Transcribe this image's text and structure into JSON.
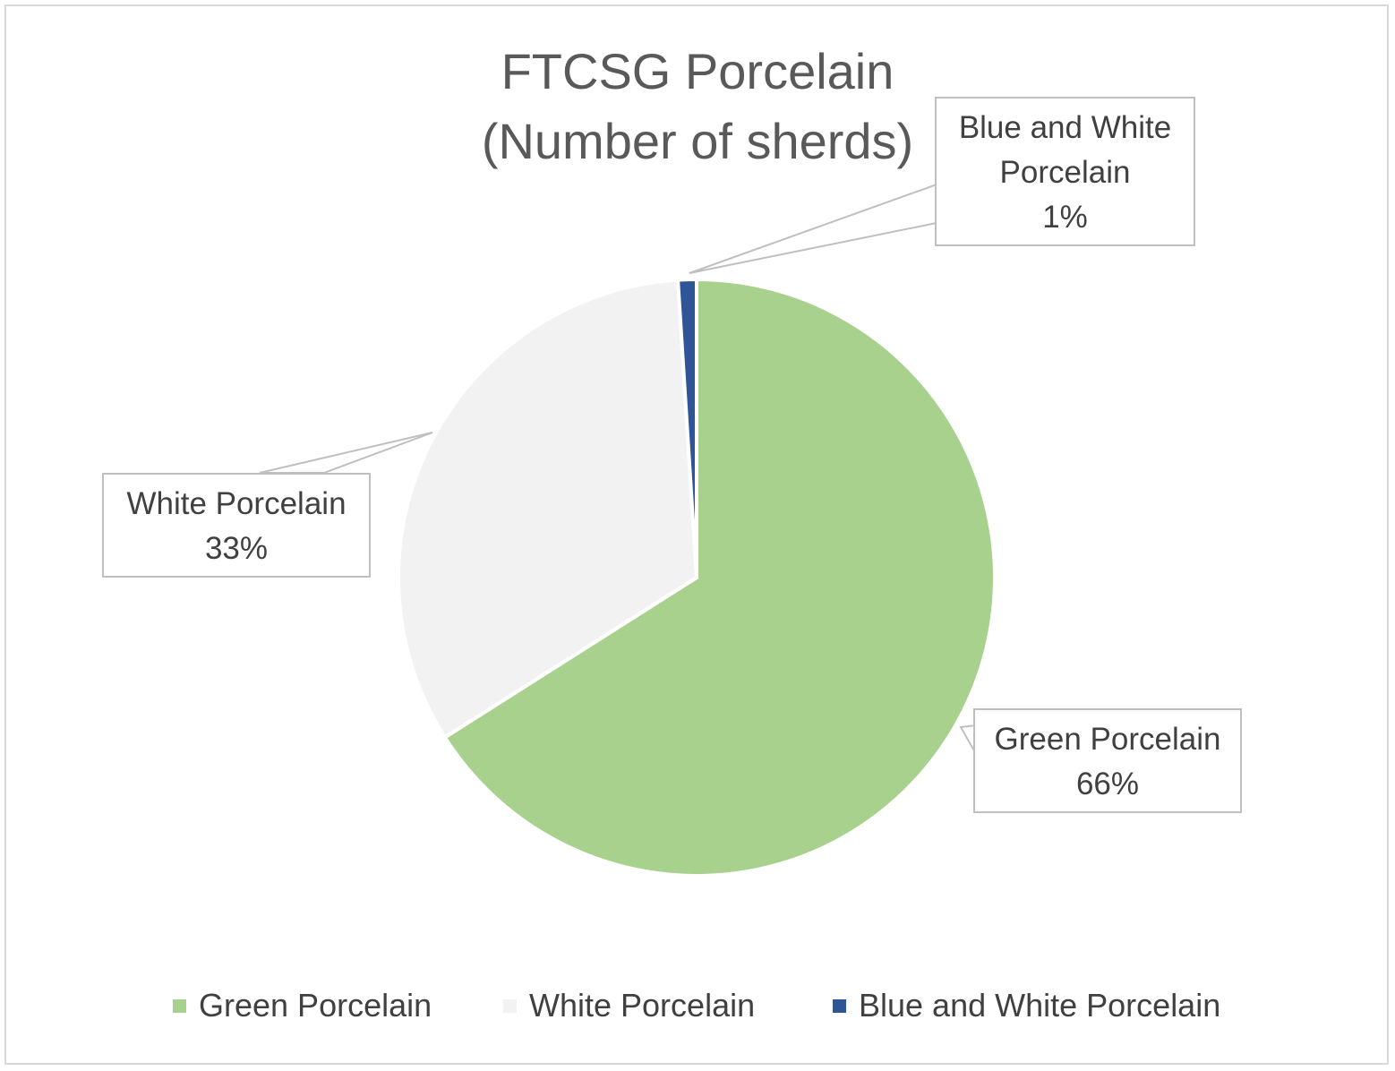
{
  "chart_data": {
    "type": "pie",
    "title_lines": [
      "FTCSG Porcelain",
      "(Number of sherds)"
    ],
    "series": [
      {
        "name": "Green Porcelain",
        "value": 66,
        "label": "66%",
        "color": "#a9d18e"
      },
      {
        "name": "White Porcelain",
        "value": 33,
        "label": "33%",
        "color": "#f2f2f2"
      },
      {
        "name": "Blue and White Porcelain",
        "value": 1,
        "label": "1%",
        "color": "#2f5597"
      }
    ],
    "data_labels": [
      {
        "lines": [
          "Green Porcelain",
          "66%"
        ]
      },
      {
        "lines": [
          "White Porcelain",
          "33%"
        ]
      },
      {
        "lines": [
          "Blue and White",
          "Porcelain",
          "1%"
        ]
      }
    ],
    "legend": {
      "position": "bottom",
      "entries": [
        "Green Porcelain",
        "White Porcelain",
        "Blue and White Porcelain"
      ]
    }
  }
}
